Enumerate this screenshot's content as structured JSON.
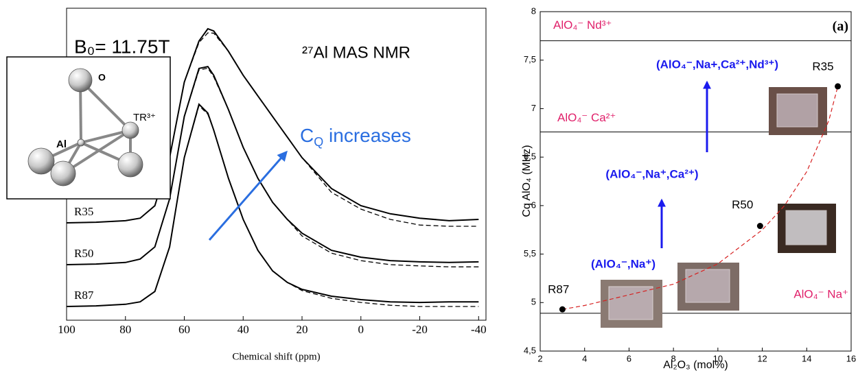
{
  "chart_data": [
    {
      "type": "line",
      "x": [
        100,
        90,
        80,
        75,
        70,
        65,
        60,
        55,
        52,
        50,
        45,
        40,
        35,
        30,
        25,
        20,
        10,
        0,
        -10,
        -20,
        -30,
        -40
      ],
      "xlim": [
        100,
        -42.5
      ],
      "ylim": [
        0,
        100
      ],
      "xticks": [
        100,
        80,
        60,
        40,
        20,
        0,
        -20,
        -40
      ],
      "xlabel": "Chemical shift (ppm)",
      "field": "B₀= 11.75T",
      "nucleus": "²⁷Al MAS NMR",
      "trend": [
        "C",
        "Q",
        " increases"
      ],
      "inset_labels": [
        "O",
        "Al",
        "TR³⁺"
      ],
      "series": [
        {
          "name": "R35",
          "color": "#000000",
          "values": [
            31.2,
            31.4,
            31.9,
            32.7,
            36.7,
            52.1,
            76.3,
            89.5,
            93.4,
            92.7,
            86.2,
            78.5,
            71.9,
            65.3,
            58.7,
            52.1,
            42.2,
            36.7,
            34.1,
            32.7,
            31.9,
            32.3
          ]
        },
        {
          "color": "#000000",
          "dash": true,
          "values": [
            31.2,
            31.4,
            31.9,
            32.7,
            36.7,
            52.1,
            76.3,
            89.0,
            92.1,
            92.0,
            86.2,
            78.5,
            71.9,
            65.3,
            58.7,
            52.1,
            41.0,
            35.6,
            32.3,
            30.5,
            30.1,
            30.1
          ]
        },
        {
          "name": "R50",
          "color": "#000000",
          "values": [
            17.8,
            18.0,
            18.5,
            19.6,
            23.5,
            38.9,
            65.3,
            80.7,
            81.3,
            78.5,
            67.5,
            55.4,
            45.5,
            37.8,
            32.3,
            27.9,
            22.4,
            20.2,
            19.1,
            18.7,
            18.5,
            18.7
          ]
        },
        {
          "color": "#000000",
          "dash": true,
          "values": [
            17.8,
            18.0,
            18.5,
            19.6,
            23.5,
            38.9,
            65.3,
            80.2,
            80.8,
            78.0,
            67.5,
            55.4,
            45.5,
            37.8,
            32.3,
            27.0,
            21.5,
            19.1,
            17.8,
            17.4,
            17.1,
            17.1
          ]
        },
        {
          "name": "R87",
          "color": "#000000",
          "values": [
            4.4,
            4.6,
            5.1,
            5.9,
            9.2,
            23.5,
            52.1,
            69.2,
            66.4,
            60.9,
            45.5,
            32.3,
            22.4,
            15.8,
            12.1,
            9.9,
            7.7,
            6.6,
            5.9,
            5.7,
            5.9,
            5.9
          ]
        },
        {
          "color": "#000000",
          "dash": true,
          "values": [
            4.4,
            4.6,
            5.1,
            5.9,
            9.2,
            23.5,
            52.1,
            68.8,
            66.0,
            60.9,
            45.5,
            32.3,
            22.4,
            15.8,
            12.1,
            9.5,
            7.0,
            5.7,
            4.8,
            4.4,
            4.4,
            4.4
          ]
        }
      ]
    },
    {
      "type": "scatter",
      "x": [
        3.0,
        11.9,
        15.4
      ],
      "values": [
        4.93,
        5.79,
        7.23
      ],
      "point_labels": [
        "R87",
        "R50",
        "R35"
      ],
      "color": "#000000",
      "xlim": [
        2,
        16
      ],
      "ylim": [
        4.5,
        8
      ],
      "xticks": [
        2,
        4,
        6,
        8,
        10,
        12,
        14,
        16
      ],
      "yticks": [
        {
          "value": 4.5,
          "label": "4,5"
        },
        5,
        {
          "value": 5.5,
          "label": "5,5"
        },
        6,
        {
          "value": 6.5,
          "label": "6,5"
        },
        7,
        {
          "value": 7.5,
          "label": "7,5"
        },
        8
      ],
      "xlabel": "Al₂O₃ (mol%)",
      "ylabel": "Cq AlO₄ (MHz)",
      "panel": "(a)",
      "fit": {
        "color": "#d62020",
        "dash": true,
        "x": [
          3,
          4,
          6,
          8,
          10,
          12,
          13,
          14,
          15,
          15.4
        ],
        "values": [
          4.93,
          4.97,
          5.08,
          5.19,
          5.4,
          5.75,
          6.0,
          6.35,
          6.88,
          7.23
        ]
      },
      "hlines": [
        {
          "value": 4.89,
          "label": "AlO₄⁻ Na⁺"
        },
        {
          "value": 6.76,
          "label": "AlO₄⁻ Ca²⁺"
        },
        {
          "value": 7.7,
          "label": "AlO₄⁻ Nd³⁺"
        }
      ],
      "hline_color": "#e0206a",
      "environments": [
        "(AlO₄⁻,Na⁺)",
        "(AlO₄⁻,Na⁺,Ca²⁺)",
        "(AlO₄⁻,Na+,Ca²⁺,Nd³⁺)"
      ],
      "environment_color": "#1a1aee"
    }
  ]
}
